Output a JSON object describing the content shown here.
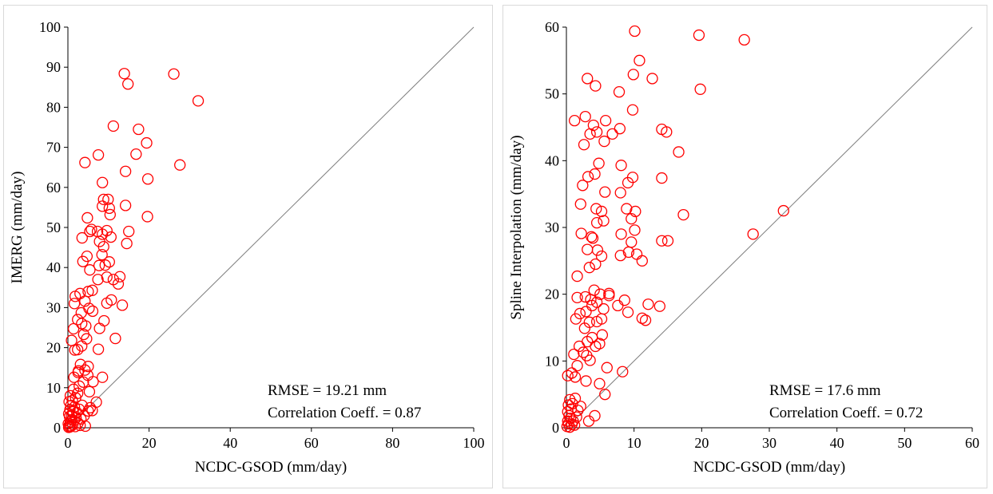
{
  "chart_data": [
    {
      "type": "scatter",
      "xlabel": "NCDC-GSOD (mm/day)",
      "ylabel": "IMERG (mm/day)",
      "xlim": [
        0,
        100
      ],
      "ylim": [
        0,
        100
      ],
      "xticks": [
        0,
        20,
        40,
        60,
        80,
        100
      ],
      "yticks": [
        0,
        10,
        20,
        30,
        40,
        50,
        60,
        70,
        80,
        90,
        100
      ],
      "marker_color": "#ff0000",
      "line_color": "#808080",
      "reference_line": "1:1",
      "annotations": [
        "RMSE = 19.21 mm",
        "Correlation Coeff. = 0.87"
      ],
      "series": [
        {
          "points": [
            [
              0.2,
              0.1
            ],
            [
              0.3,
              0.5
            ],
            [
              0.5,
              0.2
            ],
            [
              0.1,
              1.0
            ],
            [
              0.6,
              1.5
            ],
            [
              0.8,
              0.4
            ],
            [
              1.0,
              2.0
            ],
            [
              0.4,
              2.8
            ],
            [
              1.2,
              0.8
            ],
            [
              1.5,
              1.8
            ],
            [
              0.2,
              3.5
            ],
            [
              0.9,
              3.0
            ],
            [
              1.8,
              0.3
            ],
            [
              2.0,
              2.5
            ],
            [
              0.5,
              4.5
            ],
            [
              1.3,
              4.0
            ],
            [
              2.5,
              1.2
            ],
            [
              0.7,
              5.5
            ],
            [
              1.6,
              5.2
            ],
            [
              2.2,
              3.8
            ],
            [
              3.0,
              0.6
            ],
            [
              0.3,
              6.5
            ],
            [
              1.1,
              6.8
            ],
            [
              2.8,
              4.6
            ],
            [
              0.6,
              8.0
            ],
            [
              1.9,
              7.5
            ],
            [
              3.2,
              2.2
            ],
            [
              2.4,
              8.6
            ],
            [
              1.4,
              9.6
            ],
            [
              3.5,
              5.6
            ],
            [
              4.0,
              3.0
            ],
            [
              4.3,
              0.4
            ],
            [
              5.0,
              4.2
            ],
            [
              5.5,
              5.0
            ],
            [
              6.0,
              4.3
            ],
            [
              2.8,
              10.4
            ],
            [
              3.8,
              11.4
            ],
            [
              1.5,
              12.6
            ],
            [
              2.5,
              13.8
            ],
            [
              4.2,
              14.4
            ],
            [
              3.1,
              15.8
            ],
            [
              5.0,
              15.3
            ],
            [
              0.9,
              21.8
            ],
            [
              1.7,
              19.4
            ],
            [
              2.4,
              19.5
            ],
            [
              3.4,
              20.4
            ],
            [
              3.9,
              23.3
            ],
            [
              1.4,
              24.7
            ],
            [
              4.6,
              22.2
            ],
            [
              2.4,
              27.0
            ],
            [
              3.4,
              26.0
            ],
            [
              4.4,
              25.4
            ],
            [
              3.3,
              28.7
            ],
            [
              5.2,
              29.8
            ],
            [
              1.6,
              31.0
            ],
            [
              4.2,
              31.6
            ],
            [
              1.8,
              32.8
            ],
            [
              6.1,
              29.1
            ],
            [
              3.0,
              33.5
            ],
            [
              5.0,
              34.0
            ],
            [
              6.0,
              34.3
            ],
            [
              7.8,
              24.8
            ],
            [
              8.9,
              26.7
            ],
            [
              9.6,
              31.1
            ],
            [
              10.7,
              31.9
            ],
            [
              7.4,
              37.0
            ],
            [
              9.6,
              37.6
            ],
            [
              5.4,
              39.4
            ],
            [
              7.7,
              40.5
            ],
            [
              9.2,
              40.6
            ],
            [
              8.4,
              43.2
            ],
            [
              10.2,
              41.4
            ],
            [
              3.7,
              41.5
            ],
            [
              4.7,
              42.8
            ],
            [
              8.8,
              45.2
            ],
            [
              7.8,
              46.5
            ],
            [
              10.6,
              47.6
            ],
            [
              5.4,
              49.0
            ],
            [
              7.3,
              49.0
            ],
            [
              8.5,
              48.3
            ],
            [
              9.6,
              49.2
            ],
            [
              11.2,
              37.0
            ],
            [
              12.8,
              37.7
            ],
            [
              12.4,
              35.9
            ],
            [
              10.4,
              53.2
            ],
            [
              8.5,
              55.3
            ],
            [
              10.2,
              54.8
            ],
            [
              8.8,
              57.0
            ],
            [
              9.9,
              57.0
            ],
            [
              14.2,
              55.5
            ],
            [
              14.5,
              46.0
            ],
            [
              15.0,
              49.0
            ],
            [
              3.5,
              47.4
            ],
            [
              4.8,
              52.4
            ],
            [
              5.8,
              49.5
            ],
            [
              4.2,
              66.2
            ],
            [
              7.5,
              68.1
            ],
            [
              8.5,
              61.2
            ],
            [
              11.2,
              75.3
            ],
            [
              14.2,
              64.0
            ],
            [
              16.8,
              68.3
            ],
            [
              17.4,
              74.5
            ],
            [
              19.4,
              71.1
            ],
            [
              19.7,
              62.1
            ],
            [
              19.6,
              52.7
            ],
            [
              13.9,
              88.4
            ],
            [
              14.8,
              85.8
            ],
            [
              26.1,
              88.3
            ],
            [
              27.6,
              65.6
            ],
            [
              32.1,
              81.6
            ],
            [
              11.7,
              22.3
            ],
            [
              13.4,
              30.6
            ],
            [
              7.5,
              19.6
            ],
            [
              8.5,
              12.6
            ],
            [
              7.0,
              6.4
            ],
            [
              5.3,
              9.0
            ],
            [
              6.2,
              11.5
            ],
            [
              4.9,
              13.1
            ],
            [
              2.6,
              14.2
            ]
          ]
        }
      ]
    },
    {
      "type": "scatter",
      "xlabel": "NCDC-GSOD (mm/day)",
      "ylabel": "Spline Interpolation (mm/day)",
      "xlim": [
        0,
        60
      ],
      "ylim": [
        0,
        60
      ],
      "xticks": [
        0,
        10,
        20,
        30,
        40,
        50,
        60
      ],
      "yticks": [
        0,
        10,
        20,
        30,
        40,
        50,
        60
      ],
      "marker_color": "#ff0000",
      "line_color": "#808080",
      "reference_line": "1:1",
      "annotations": [
        "RMSE = 17.6 mm",
        "Correlation Coeff. = 0.72"
      ],
      "series": [
        {
          "points": [
            [
              0.1,
              0.2
            ],
            [
              0.3,
              0.6
            ],
            [
              0.5,
              0.1
            ],
            [
              0.2,
              1.0
            ],
            [
              0.6,
              1.4
            ],
            [
              0.8,
              0.5
            ],
            [
              0.4,
              1.8
            ],
            [
              1.0,
              1.0
            ],
            [
              0.2,
              2.4
            ],
            [
              0.7,
              2.8
            ],
            [
              1.2,
              0.4
            ],
            [
              1.5,
              1.6
            ],
            [
              0.3,
              3.4
            ],
            [
              0.9,
              3.6
            ],
            [
              1.7,
              2.6
            ],
            [
              0.5,
              4.2
            ],
            [
              1.3,
              4.4
            ],
            [
              2.1,
              3.2
            ],
            [
              0.2,
              7.8
            ],
            [
              0.8,
              8.2
            ],
            [
              1.3,
              7.6
            ],
            [
              1.6,
              9.3
            ],
            [
              1.1,
              11.0
            ],
            [
              1.9,
              12.2
            ],
            [
              2.5,
              11.3
            ],
            [
              3.0,
              10.8
            ],
            [
              3.5,
              10.1
            ],
            [
              3.1,
              12.9
            ],
            [
              3.8,
              13.5
            ],
            [
              4.3,
              12.2
            ],
            [
              4.9,
              12.6
            ],
            [
              5.3,
              13.9
            ],
            [
              2.7,
              14.9
            ],
            [
              3.4,
              15.8
            ],
            [
              4.5,
              15.9
            ],
            [
              5.2,
              16.3
            ],
            [
              1.4,
              16.3
            ],
            [
              2.0,
              17.1
            ],
            [
              2.9,
              17.4
            ],
            [
              3.8,
              18.3
            ],
            [
              4.5,
              18.8
            ],
            [
              5.5,
              17.8
            ],
            [
              1.6,
              19.5
            ],
            [
              2.8,
              19.6
            ],
            [
              3.6,
              19.2
            ],
            [
              4.1,
              20.6
            ],
            [
              5.0,
              20.0
            ],
            [
              6.3,
              19.8
            ],
            [
              7.6,
              18.3
            ],
            [
              8.6,
              19.1
            ],
            [
              9.1,
              17.3
            ],
            [
              11.2,
              16.4
            ],
            [
              11.7,
              16.1
            ],
            [
              12.1,
              18.5
            ],
            [
              13.8,
              18.2
            ],
            [
              1.6,
              22.7
            ],
            [
              3.4,
              24.0
            ],
            [
              4.3,
              24.5
            ],
            [
              5.2,
              25.7
            ],
            [
              6.3,
              20.1
            ],
            [
              3.1,
              26.7
            ],
            [
              3.7,
              28.6
            ],
            [
              4.6,
              26.6
            ],
            [
              8.0,
              25.8
            ],
            [
              9.2,
              26.3
            ],
            [
              10.4,
              26.0
            ],
            [
              11.2,
              25.0
            ],
            [
              2.2,
              29.1
            ],
            [
              3.9,
              28.4
            ],
            [
              4.5,
              30.7
            ],
            [
              5.2,
              32.4
            ],
            [
              8.1,
              29.0
            ],
            [
              9.6,
              27.8
            ],
            [
              10.1,
              29.6
            ],
            [
              2.1,
              33.5
            ],
            [
              4.4,
              32.8
            ],
            [
              5.5,
              31.0
            ],
            [
              8.9,
              32.8
            ],
            [
              9.6,
              31.3
            ],
            [
              10.2,
              32.4
            ],
            [
              2.4,
              36.3
            ],
            [
              3.2,
              37.6
            ],
            [
              4.2,
              38.0
            ],
            [
              5.7,
              35.3
            ],
            [
              8.0,
              35.2
            ],
            [
              9.1,
              36.7
            ],
            [
              9.8,
              37.5
            ],
            [
              14.1,
              37.4
            ],
            [
              17.3,
              31.9
            ],
            [
              27.6,
              29.0
            ],
            [
              32.1,
              32.5
            ],
            [
              4.8,
              39.6
            ],
            [
              2.6,
              42.4
            ],
            [
              3.5,
              44.0
            ],
            [
              4.5,
              44.3
            ],
            [
              5.6,
              42.9
            ],
            [
              6.8,
              44.0
            ],
            [
              7.9,
              44.8
            ],
            [
              8.1,
              39.3
            ],
            [
              9.8,
              47.6
            ],
            [
              14.1,
              44.7
            ],
            [
              14.8,
              44.3
            ],
            [
              16.6,
              41.3
            ],
            [
              2.8,
              46.6
            ],
            [
              4.0,
              45.3
            ],
            [
              5.8,
              46.0
            ],
            [
              1.2,
              46.0
            ],
            [
              3.1,
              52.3
            ],
            [
              4.3,
              51.2
            ],
            [
              7.8,
              50.3
            ],
            [
              9.9,
              52.9
            ],
            [
              12.7,
              52.3
            ],
            [
              10.1,
              59.4
            ],
            [
              10.8,
              55.0
            ],
            [
              19.6,
              58.8
            ],
            [
              26.3,
              58.1
            ],
            [
              19.8,
              50.7
            ],
            [
              14.1,
              28.0
            ],
            [
              15.0,
              28.0
            ],
            [
              8.3,
              8.4
            ],
            [
              6.0,
              9.0
            ],
            [
              5.7,
              5.0
            ],
            [
              3.3,
              1.0
            ],
            [
              4.2,
              1.8
            ],
            [
              2.9,
              7.0
            ],
            [
              4.9,
              6.6
            ]
          ]
        }
      ]
    }
  ]
}
